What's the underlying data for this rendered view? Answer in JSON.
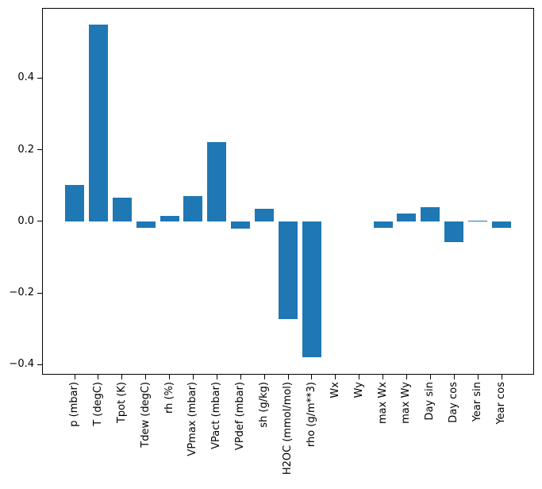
{
  "figure": {
    "background_color": "#ffffff",
    "frame_color": "#000000",
    "text_color": "#000000"
  },
  "chart_data": {
    "type": "bar",
    "title": "",
    "xlabel": "",
    "ylabel": "",
    "grid": false,
    "legend": null,
    "bar_color": "#1f77b4",
    "categories": [
      "p (mbar)",
      "T (degC)",
      "Tpot (K)",
      "Tdew (degC)",
      "rh (%)",
      "VPmax (mbar)",
      "VPact (mbar)",
      "VPdef (mbar)",
      "sh (g/kg)",
      "H2OC (mmol/mol)",
      "rho (g/m**3)",
      "Wx",
      "Wy",
      "max Wx",
      "max Wy",
      "Day sin",
      "Day cos",
      "Year sin",
      "Year cos"
    ],
    "values": [
      0.101,
      0.549,
      0.067,
      -0.018,
      0.015,
      0.07,
      0.222,
      -0.02,
      0.035,
      -0.273,
      -0.379,
      0.0,
      0.0,
      -0.019,
      0.023,
      0.039,
      -0.057,
      0.003,
      -0.017
    ],
    "ylim": [
      -0.426,
      0.594
    ],
    "yticks": [
      {
        "label": "−0.4",
        "value": -0.4
      },
      {
        "label": "−0.2",
        "value": -0.2
      },
      {
        "label": "0.0",
        "value": 0.0
      },
      {
        "label": "0.2",
        "value": 0.2
      },
      {
        "label": "0.4",
        "value": 0.4
      }
    ],
    "x_tick_rotation": 90
  }
}
